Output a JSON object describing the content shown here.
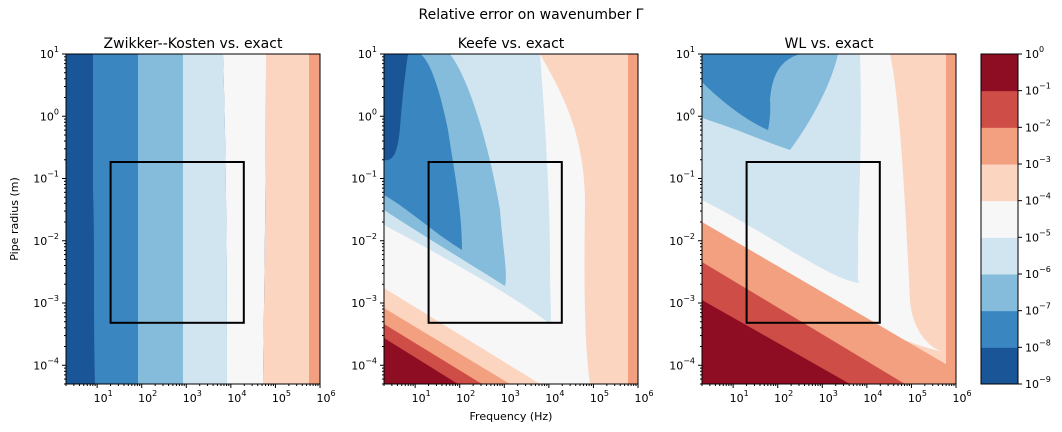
{
  "figure": {
    "suptitle": "Relative error on wavenumber Γ",
    "xlabel": "Frequency (Hz)",
    "ylabel": "Pipe radius (m)"
  },
  "colors": {
    "levels": [
      "#1a5697",
      "#3a86c0",
      "#85bcdb",
      "#d1e5f0",
      "#f7f7f7",
      "#fcd5c0",
      "#f2a07f",
      "#cf4d47",
      "#8f0d22"
    ]
  },
  "chart_data": [
    {
      "type": "heatmap",
      "title": "Zwikker--Kosten vs. exact",
      "x_scale": "log",
      "y_scale": "log",
      "xlim": [
        2,
        1000000
      ],
      "ylim": [
        5e-05,
        10
      ],
      "x_ticks": [
        {
          "base": "10",
          "exp": "1"
        },
        {
          "base": "10",
          "exp": "2"
        },
        {
          "base": "10",
          "exp": "3"
        },
        {
          "base": "10",
          "exp": "4"
        },
        {
          "base": "10",
          "exp": "5"
        },
        {
          "base": "10",
          "exp": "6"
        }
      ],
      "y_ticks": [
        {
          "base": "10",
          "exp": "−4"
        },
        {
          "base": "10",
          "exp": "−3"
        },
        {
          "base": "10",
          "exp": "−2"
        },
        {
          "base": "10",
          "exp": "−1"
        },
        {
          "base": "10",
          "exp": "0"
        },
        {
          "base": "10",
          "exp": "1"
        }
      ],
      "bands_by_frequency": [
        {
          "from_hz": 2,
          "to_hz": 8,
          "level": "1e-9 to 1e-8"
        },
        {
          "from_hz": 8,
          "to_hz": 90,
          "level": "1e-8 to 1e-7"
        },
        {
          "from_hz": 90,
          "to_hz": 900,
          "level": "1e-7 to 1e-6"
        },
        {
          "from_hz": 900,
          "to_hz": 9000,
          "level": "1e-6 to 1e-5"
        },
        {
          "from_hz": 9000,
          "to_hz": 80000,
          "level": "1e-5 to 1e-4"
        },
        {
          "from_hz": 80000,
          "to_hz": 600000,
          "level": "1e-4 to 1e-3"
        },
        {
          "from_hz": 600000,
          "to_hz": 1000000,
          "level": "1e-3 to 1e-2"
        }
      ],
      "box": {
        "f_min_hz": 20,
        "f_max_hz": 20000,
        "r_min_m": 0.0005,
        "r_max_m": 0.2
      }
    },
    {
      "type": "heatmap",
      "title": "Keefe vs. exact",
      "x_scale": "log",
      "y_scale": "log",
      "xlim": [
        2,
        1000000
      ],
      "ylim": [
        5e-05,
        10
      ],
      "x_ticks": [
        {
          "base": "10",
          "exp": "1"
        },
        {
          "base": "10",
          "exp": "2"
        },
        {
          "base": "10",
          "exp": "3"
        },
        {
          "base": "10",
          "exp": "4"
        },
        {
          "base": "10",
          "exp": "5"
        },
        {
          "base": "10",
          "exp": "6"
        }
      ],
      "y_ticks": [
        {
          "base": "10",
          "exp": "−4"
        },
        {
          "base": "10",
          "exp": "−3"
        },
        {
          "base": "10",
          "exp": "−2"
        },
        {
          "base": "10",
          "exp": "−1"
        },
        {
          "base": "10",
          "exp": "0"
        },
        {
          "base": "10",
          "exp": "1"
        }
      ],
      "box": {
        "f_min_hz": 20,
        "f_max_hz": 20000,
        "r_min_m": 0.0005,
        "r_max_m": 0.2
      }
    },
    {
      "type": "heatmap",
      "title": "WL vs. exact",
      "x_scale": "log",
      "y_scale": "log",
      "xlim": [
        2,
        1000000
      ],
      "ylim": [
        5e-05,
        10
      ],
      "x_ticks": [
        {
          "base": "10",
          "exp": "1"
        },
        {
          "base": "10",
          "exp": "2"
        },
        {
          "base": "10",
          "exp": "3"
        },
        {
          "base": "10",
          "exp": "4"
        },
        {
          "base": "10",
          "exp": "5"
        },
        {
          "base": "10",
          "exp": "6"
        }
      ],
      "y_ticks": [
        {
          "base": "10",
          "exp": "−4"
        },
        {
          "base": "10",
          "exp": "−3"
        },
        {
          "base": "10",
          "exp": "−2"
        },
        {
          "base": "10",
          "exp": "−1"
        },
        {
          "base": "10",
          "exp": "0"
        },
        {
          "base": "10",
          "exp": "1"
        }
      ],
      "box": {
        "f_min_hz": 20,
        "f_max_hz": 20000,
        "r_min_m": 0.0005,
        "r_max_m": 0.2
      }
    }
  ],
  "colorbar": {
    "scale": "log",
    "range": [
      1e-09,
      1
    ],
    "ticks": [
      {
        "base": "10",
        "exp": "0"
      },
      {
        "base": "10",
        "exp": "−1"
      },
      {
        "base": "10",
        "exp": "−2"
      },
      {
        "base": "10",
        "exp": "−3"
      },
      {
        "base": "10",
        "exp": "−4"
      },
      {
        "base": "10",
        "exp": "−5"
      },
      {
        "base": "10",
        "exp": "−6"
      },
      {
        "base": "10",
        "exp": "−7"
      },
      {
        "base": "10",
        "exp": "−8"
      },
      {
        "base": "10",
        "exp": "−9"
      }
    ]
  }
}
